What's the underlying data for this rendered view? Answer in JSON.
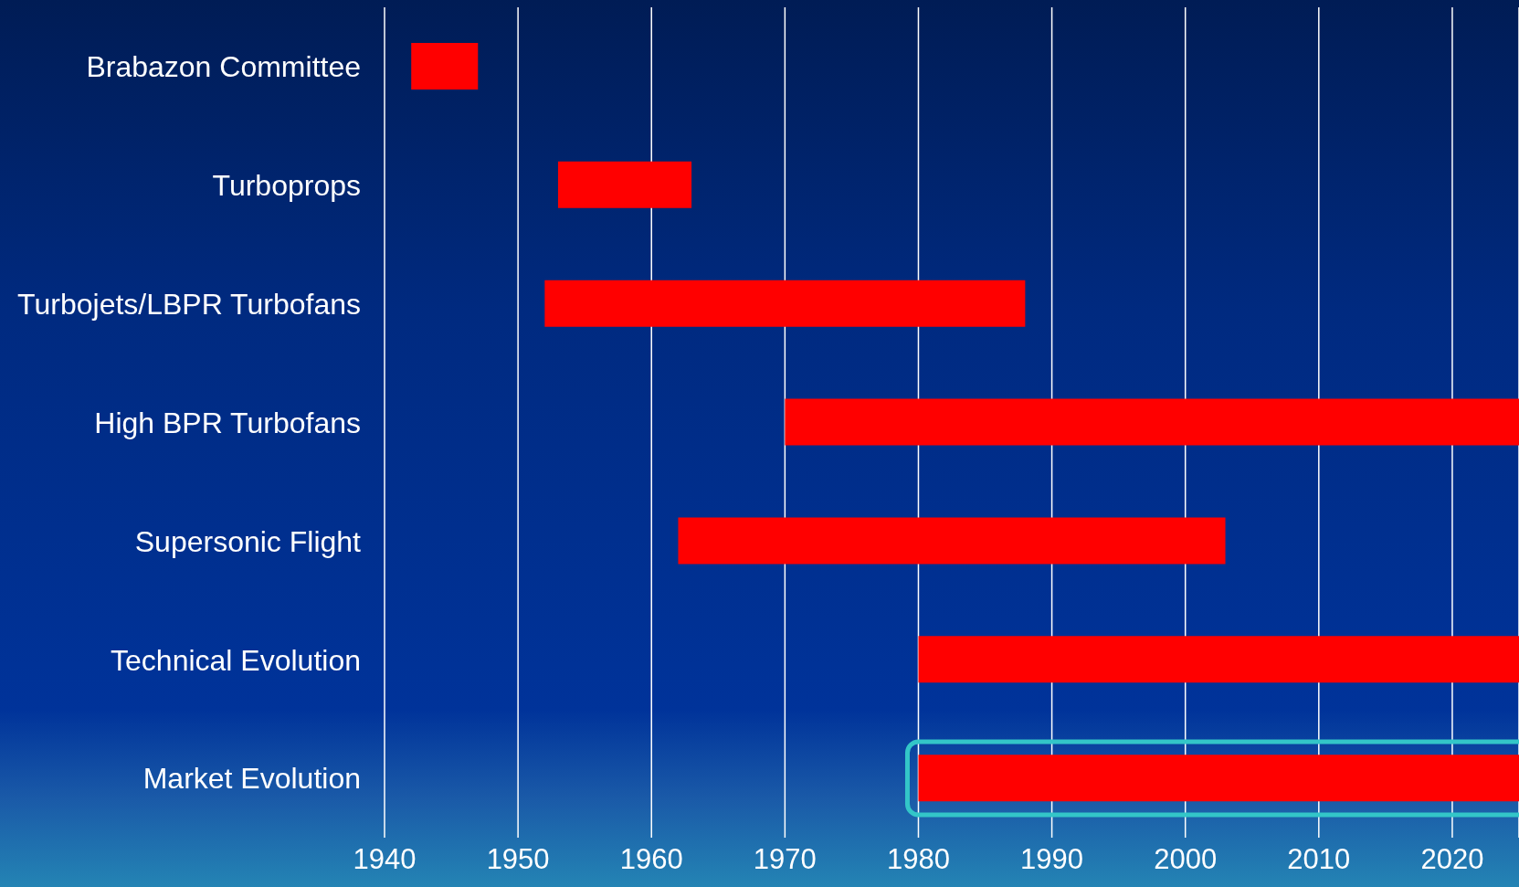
{
  "chart_data": {
    "type": "bar",
    "orientation": "horizontal",
    "categories": [
      "Brabazon Committee",
      "Turboprops",
      "Turbojets/LBPR Turbofans",
      "High BPR Turbofans",
      "Supersonic Flight",
      "Technical Evolution",
      "Market Evolution"
    ],
    "base": [
      1942,
      1953,
      1952,
      1970,
      1962,
      1980,
      1980
    ],
    "values": [
      5,
      10,
      36,
      55,
      41,
      45,
      45
    ],
    "color": "#ff0000",
    "xlim": [
      1940,
      2025
    ],
    "xticks": [
      1940,
      1950,
      1960,
      1970,
      1980,
      1990,
      2000,
      2010,
      2020
    ],
    "grid": "x"
  }
}
